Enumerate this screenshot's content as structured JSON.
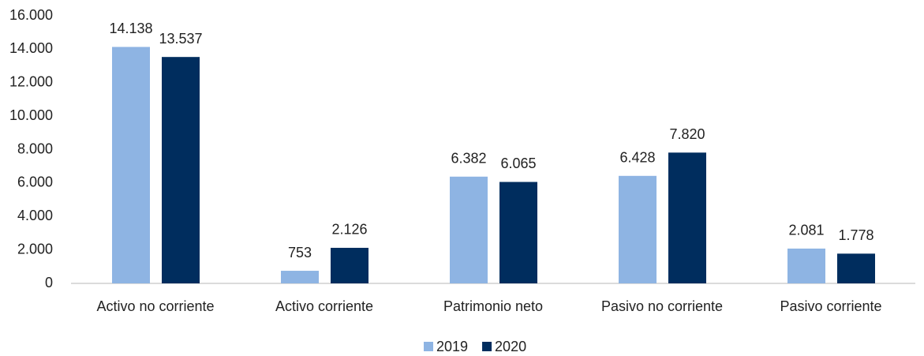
{
  "chart_data": {
    "type": "bar",
    "categories": [
      "Activo no corriente",
      "Activo corriente",
      "Patrimonio neto",
      "Pasivo no corriente",
      "Pasivo corriente"
    ],
    "series": [
      {
        "name": "2019",
        "color": "#8eb4e3",
        "values": [
          14138,
          753,
          6382,
          6428,
          2081
        ],
        "value_labels": [
          "14.138",
          "753",
          "6.382",
          "6.428",
          "2.081"
        ]
      },
      {
        "name": "2020",
        "color": "#002d5e",
        "values": [
          13537,
          2126,
          6065,
          7820,
          1778
        ],
        "value_labels": [
          "13.537",
          "2.126",
          "6.065",
          "7.820",
          "1.778"
        ]
      }
    ],
    "ylim": [
      0,
      16000
    ],
    "yticks": [
      0,
      {
        "value": 2000,
        "label": "2.000"
      },
      {
        "value": 4000,
        "label": "4.000"
      },
      {
        "value": 6000,
        "label": "6.000"
      },
      {
        "value": 8000,
        "label": "8.000"
      },
      {
        "value": 10000,
        "label": "10.000"
      },
      {
        "value": 12000,
        "label": "12.000"
      },
      {
        "value": 14000,
        "label": "14.000"
      },
      {
        "value": 16000,
        "label": "16.000"
      }
    ],
    "legend": "bottom"
  }
}
